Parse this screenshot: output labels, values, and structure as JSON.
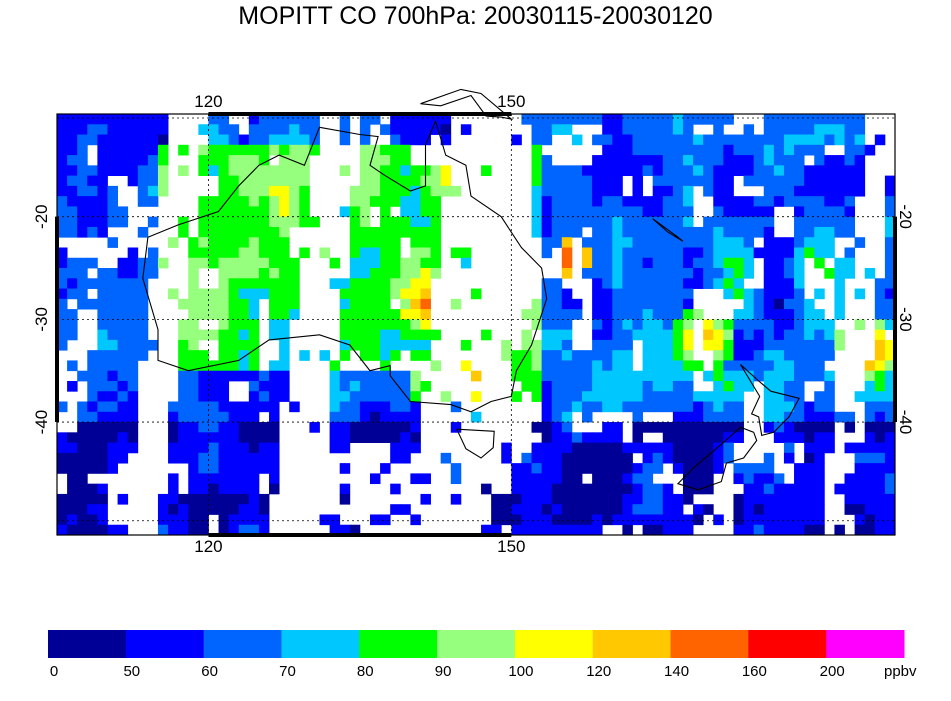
{
  "page": {
    "title": "MOPITT CO 700hPa: 20030115-20030120"
  },
  "chart_data": {
    "type": "heatmap",
    "title": "MOPITT CO 700hPa: 20030115-20030120",
    "xlim": [
      105,
      188
    ],
    "ylim": [
      -51,
      -10
    ],
    "x_ticks": [
      120,
      150
    ],
    "y_ticks": [
      -20,
      -30,
      -40
    ],
    "x_tick_labels": [
      "120",
      "150"
    ],
    "y_tick_labels": [
      "-20",
      "-30",
      "-40"
    ],
    "gridlines": true,
    "colorbar": {
      "unit": "ppbv",
      "boundaries": [
        "0",
        "50",
        "60",
        "70",
        "80",
        "90",
        "100",
        "120",
        "140",
        "160",
        "200"
      ],
      "colors": [
        "#000096",
        "#0000ff",
        "#0064ff",
        "#00c8ff",
        "#00ff00",
        "#96ff7d",
        "#ffff00",
        "#ffc800",
        "#ff6400",
        "#ff0000",
        "#ff00ff"
      ]
    },
    "grid_cell_deg": 1.0,
    "swath_gaps_lon": [
      [
        114,
        117.5
      ],
      [
        128.5,
        133
      ],
      [
        142,
        150
      ],
      [
        183,
        186
      ]
    ],
    "hotspots": [
      {
        "lon": 142,
        "lat": -28,
        "radius": 5,
        "level": 8
      },
      {
        "lon": 147,
        "lat": -36,
        "radius": 3,
        "level": 8
      },
      {
        "lon": 169,
        "lat": -32,
        "radius": 3,
        "level": 7
      },
      {
        "lon": 185,
        "lat": -33,
        "radius": 3,
        "level": 8
      },
      {
        "lon": 156,
        "lat": -24,
        "radius": 2,
        "level": 8
      }
    ]
  }
}
